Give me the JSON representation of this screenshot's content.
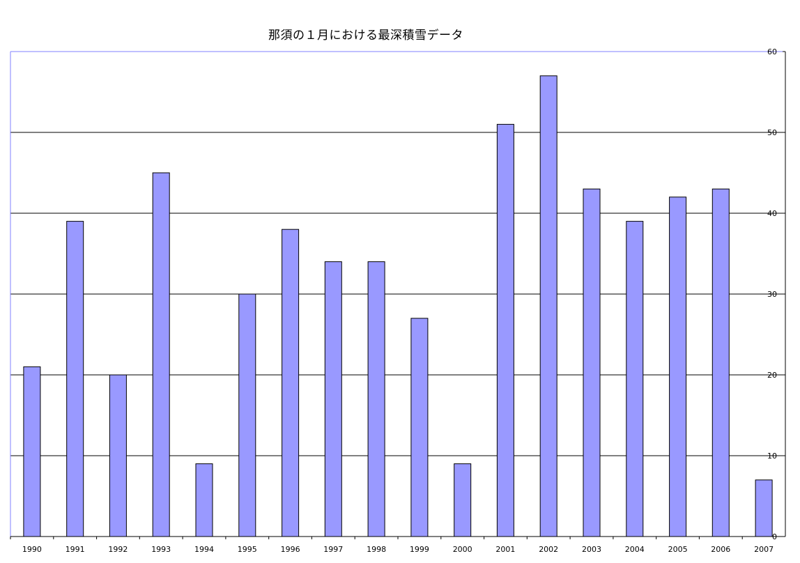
{
  "chart_data": {
    "type": "bar",
    "title": "那須の１月における最深積雪データ",
    "xlabel": "",
    "ylabel": "",
    "categories": [
      "1990",
      "1991",
      "1992",
      "1993",
      "1994",
      "1995",
      "1996",
      "1997",
      "1998",
      "1999",
      "2000",
      "2001",
      "2002",
      "2003",
      "2004",
      "2005",
      "2006",
      "2007"
    ],
    "values": [
      21,
      39,
      20,
      45,
      9,
      30,
      38,
      34,
      34,
      27,
      9,
      51,
      57,
      43,
      39,
      42,
      43,
      7
    ],
    "ylim": [
      0,
      60
    ],
    "yticks": [
      "0",
      "10",
      "20",
      "30",
      "40",
      "50",
      "60"
    ],
    "y_axis_side": "right",
    "grid": true,
    "legend": "none",
    "colors": {
      "bar_fill": "#9999ff",
      "bar_stroke": "#000000",
      "gridline": "#000000",
      "plot_border": "#8080ff"
    }
  }
}
